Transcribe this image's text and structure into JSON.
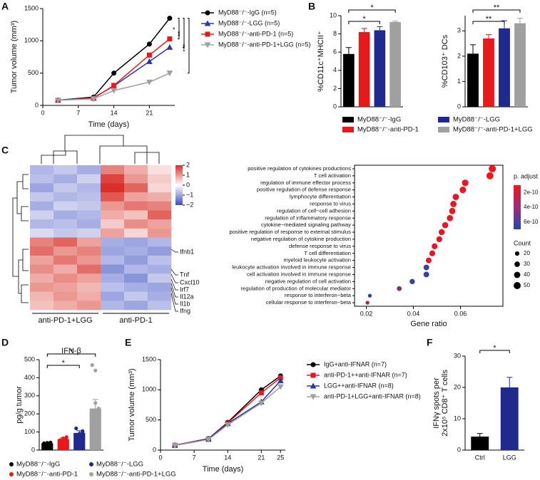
{
  "chart_data": [
    {
      "panel": "A",
      "type": "line",
      "xlabel": "Time (days)",
      "ylabel": "Tumor volume (mm³)",
      "x": [
        3,
        10,
        14,
        21,
        25
      ],
      "xlim": [
        0,
        26
      ],
      "xticks": [
        0,
        7,
        14,
        21
      ],
      "ylim": [
        0,
        1500
      ],
      "yticks": [
        0,
        500,
        1000,
        1500
      ],
      "series": [
        {
          "name": "MyD88⁻/⁻-IgG (n=5)",
          "color": "#000000",
          "marker": "circle",
          "values": [
            80,
            130,
            500,
            950,
            1350
          ]
        },
        {
          "name": "MyD88⁻/⁻-LGG (n=5)",
          "color": "#2b3a9a",
          "marker": "triangle",
          "values": [
            80,
            120,
            300,
            680,
            900
          ]
        },
        {
          "name": "MyD88⁻/⁻-anti-PD-1 (n=5)",
          "color": "#e41a1c",
          "marker": "square",
          "values": [
            80,
            110,
            310,
            780,
            1030
          ]
        },
        {
          "name": "MyD88⁻/⁻-anti-PD-1+LGG (n=5)",
          "color": "#a0a0a0",
          "marker": "triangle-down",
          "values": [
            80,
            100,
            230,
            360,
            500
          ]
        }
      ],
      "significance": [
        {
          "text": "*",
          "between": [
            0,
            2
          ]
        },
        {
          "text": "**",
          "between": [
            0,
            1
          ]
        },
        {
          "text": "***",
          "between": [
            0,
            3
          ]
        }
      ]
    },
    {
      "panel": "B",
      "type": "bar",
      "legend": true,
      "categories": [
        "MyD88⁻/⁻-IgG",
        "MyD88⁻/⁻-anti-PD-1",
        "MyD88⁻/⁻-LGG",
        "MyD88⁻/⁻-anti-PD-1+LGG"
      ],
      "colors": [
        "#000000",
        "#e41a1c",
        "#1f2a8c",
        "#a0a0a0"
      ],
      "subplots": [
        {
          "ylabel": "%CD11c⁺MHCII⁺",
          "values": [
            5.8,
            8.2,
            8.4,
            9.3
          ],
          "errors": [
            0.7,
            0.4,
            0.4,
            0.1
          ],
          "ylim": [
            0,
            10
          ],
          "yticks": [
            0,
            2,
            4,
            6,
            8,
            10
          ],
          "significance": [
            {
              "text": "*",
              "between": [
                0,
                3
              ]
            },
            {
              "text": "*",
              "between": [
                0,
                2
              ]
            }
          ]
        },
        {
          "ylabel": "%CD103⁺ DCs",
          "values": [
            2.1,
            2.7,
            3.1,
            3.3
          ],
          "errors": [
            0.35,
            0.15,
            0.3,
            0.2
          ],
          "ylim": [
            0,
            3.6
          ],
          "yticks": [
            0,
            1,
            2,
            3
          ],
          "significance": [
            {
              "text": "**",
              "between": [
                0,
                3
              ]
            },
            {
              "text": "**",
              "between": [
                0,
                2
              ]
            }
          ]
        }
      ]
    },
    {
      "panel": "C",
      "type": "heatmap",
      "clim": [
        -2,
        2
      ],
      "colorbar_ticks": [
        2,
        1,
        0,
        {
          "value": -1,
          "label": "−1"
        },
        {
          "value": -2,
          "label": "−2"
        }
      ],
      "column_groups": [
        "anti-PD-1+LGG",
        "anti-PD-1"
      ],
      "genes": [
        "Ifnb1",
        "Tnf",
        "Cxcl10",
        "Irf7",
        "Il12a",
        "Il1b",
        "Ifng"
      ],
      "matrix": [
        [
          -0.8,
          -0.6,
          -0.9,
          1.2,
          0.8,
          0.3
        ],
        [
          -0.7,
          -0.9,
          -0.5,
          1.8,
          1.0,
          0.5
        ],
        [
          -1.0,
          -0.6,
          -0.8,
          2.0,
          1.5,
          0.4
        ],
        [
          -0.6,
          -0.8,
          -0.7,
          1.6,
          0.9,
          0.8
        ],
        [
          -0.9,
          -0.5,
          -0.6,
          1.0,
          1.3,
          1.2
        ],
        [
          -0.5,
          -0.9,
          -0.8,
          0.8,
          0.6,
          1.5
        ],
        [
          -0.8,
          -0.7,
          -0.9,
          0.5,
          1.1,
          0.9
        ],
        [
          -0.4,
          -0.6,
          -0.5,
          0.9,
          0.4,
          1.0
        ],
        [
          1.2,
          1.5,
          0.9,
          -0.9,
          -1.0,
          -0.8
        ],
        [
          1.4,
          1.0,
          1.2,
          -1.0,
          -0.9,
          -1.1
        ],
        [
          0.9,
          1.3,
          1.0,
          -0.8,
          -1.1,
          -0.7
        ],
        [
          1.1,
          0.8,
          1.4,
          -1.2,
          -0.8,
          -0.9
        ],
        [
          0.8,
          1.1,
          0.9,
          -0.9,
          -1.2,
          -0.6
        ],
        [
          1.0,
          0.9,
          0.7,
          -0.7,
          -0.9,
          -1.0
        ],
        [
          0.7,
          1.0,
          0.8,
          -1.0,
          -0.6,
          -0.9
        ],
        [
          0.6,
          0.8,
          1.0,
          -0.8,
          -1.0,
          -0.7
        ]
      ]
    },
    {
      "type": "dot",
      "xlabel": "Gene ratio",
      "xlim": [
        0.015,
        0.078
      ],
      "xticks": [
        0.02,
        0.04,
        0.06
      ],
      "highlight_color": "#e41a1c",
      "terms": [
        "positive regulation of cytokines productions",
        "T cell activation",
        "regulation of immune effector process",
        "positive regulation of defense response",
        "lymphocyte differentiation",
        "response to virus",
        "regulation of cell−cell adhesion",
        "regulation of inflammatory response",
        "cytokine−mediated signaling pathway",
        "positive regulation of response to external stimulus",
        "negative regulation of cytokine production",
        "defense response to virus",
        "T cell differentiation",
        "myeloid leukocyte activation",
        "leukocyte activation involved in immune response",
        "cell activation involved in immune response",
        "negative regulation of cell activation",
        "regulation of production of molecular mediator",
        "response to interferon−beta",
        "cellular response to interferon−beta"
      ],
      "highlight": [
        true,
        true,
        false,
        false,
        false,
        false,
        false,
        true,
        true,
        false,
        false,
        false,
        false,
        false,
        false,
        true,
        false,
        false,
        true,
        true
      ],
      "gene_ratio": [
        0.0735,
        0.0725,
        0.062,
        0.061,
        0.058,
        0.057,
        0.0565,
        0.0555,
        0.0535,
        0.052,
        0.051,
        0.049,
        0.048,
        0.0465,
        0.0455,
        0.0455,
        0.0395,
        0.034,
        0.0215,
        0.0205
      ],
      "p_adjust": [
        1e-10,
        1e-10,
        1.2e-10,
        1.2e-10,
        1.3e-10,
        1.3e-10,
        1.2e-10,
        1.3e-10,
        1.2e-10,
        1.3e-10,
        1.4e-10,
        1.3e-10,
        1.4e-10,
        1.5e-10,
        6.5e-10,
        6.5e-10,
        6.5e-10,
        4.5e-10,
        6.8e-10,
        3e-10
      ],
      "count": [
        52,
        50,
        44,
        43,
        41,
        40,
        40,
        39,
        38,
        37,
        36,
        35,
        34,
        33,
        32,
        32,
        28,
        24,
        15,
        15
      ],
      "color_title": "p. adjust",
      "color_lim": [
        1e-10,
        7e-10
      ],
      "color_ticks": [
        2e-10,
        4e-10,
        6e-10
      ],
      "size_title": "Count",
      "size_ticks": [
        20,
        30,
        40,
        50
      ]
    },
    {
      "panel": "D",
      "type": "bar",
      "legend": true,
      "title": "IFN-β",
      "ylabel": "pg/g tumor",
      "categories": [
        "MyD88⁻/⁻-IgG",
        "MyD88⁻/⁻-anti-PD-1",
        "MyD88⁻/⁻-LGG",
        "MyD88⁻/⁻-anti-PD-1+LGG"
      ],
      "colors": [
        "#000000",
        "#e41a1c",
        "#1f2a8c",
        "#a0a0a0"
      ],
      "values": [
        38,
        60,
        95,
        230
      ],
      "errors": [
        3,
        8,
        12,
        50
      ],
      "points": [
        [
          38,
          40,
          42,
          36,
          39,
          35
        ],
        [
          50,
          65,
          72,
          55,
          60,
          58
        ],
        [
          70,
          90,
          100,
          120,
          85,
          105
        ],
        [
          150,
          200,
          230,
          470,
          440,
          210,
          170,
          260,
          180
        ]
      ],
      "ylim": [
        0,
        500
      ],
      "yticks": [
        0,
        100,
        200,
        300,
        400,
        500
      ],
      "significance": [
        {
          "text": "*",
          "between": [
            0,
            3
          ]
        },
        {
          "text": "*",
          "between": [
            0,
            2
          ]
        }
      ]
    },
    {
      "panel": "E",
      "type": "line",
      "xlabel": "Time (days)",
      "ylabel": "Tumor volume (mm³)",
      "x": [
        3,
        10,
        14,
        21,
        25
      ],
      "xlim": [
        0,
        26
      ],
      "xticks": [
        0,
        7,
        14,
        21,
        25
      ],
      "ylim": [
        0,
        1500
      ],
      "yticks": [
        0,
        500,
        1000,
        1500
      ],
      "series": [
        {
          "name": "IgG+anti-IFNAR (n=7)",
          "color": "#000000",
          "marker": "circle",
          "values": [
            80,
            190,
            460,
            1000,
            1230
          ]
        },
        {
          "name": "anti-PD-1++anti-IFNAR (n=7)",
          "color": "#e41a1c",
          "marker": "square",
          "values": [
            80,
            185,
            450,
            950,
            1200
          ]
        },
        {
          "name": "LGG++anti-IFNAR (n=8)",
          "color": "#2b3a9a",
          "marker": "triangle",
          "values": [
            80,
            180,
            440,
            800,
            1150
          ]
        },
        {
          "name": "anti-PD-1+LGG+anti-IFNAR (n=8)",
          "color": "#a0a0a0",
          "marker": "triangle-down",
          "values": [
            75,
            175,
            420,
            780,
            1050
          ]
        }
      ]
    },
    {
      "panel": "F",
      "type": "bar",
      "ylabel": [
        "IFNγ spots per",
        "2x10⁵ CD8⁺ T cells"
      ],
      "categories": [
        "Ctrl",
        "LGG"
      ],
      "colors": [
        "#000000",
        "#1f2a8c"
      ],
      "values": [
        4.3,
        20
      ],
      "errors": [
        1,
        3.2
      ],
      "ylim": [
        0,
        30
      ],
      "yticks": [
        0,
        10,
        20,
        30
      ],
      "significance": [
        {
          "text": "*",
          "between": [
            0,
            1
          ]
        }
      ]
    }
  ]
}
